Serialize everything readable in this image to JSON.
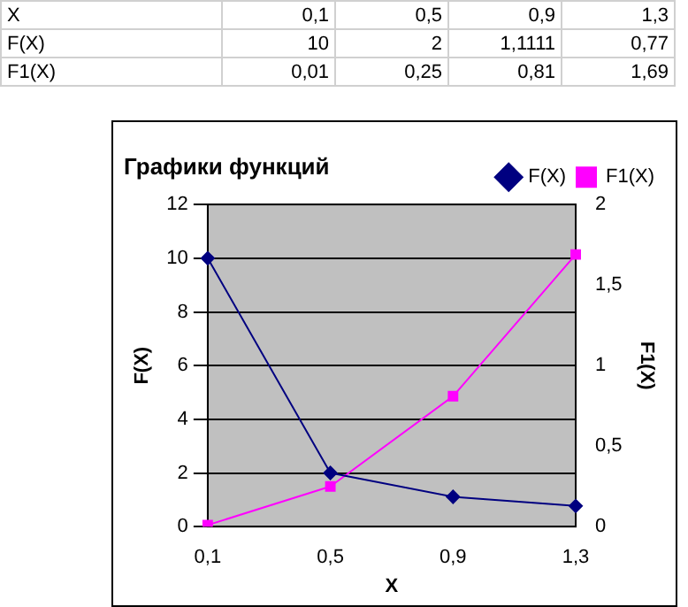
{
  "chart_data": {
    "type": "line",
    "title": "Графики функций",
    "xlabel": "X",
    "ylabel": "F(X)",
    "y2label": "F1(X)",
    "categories": [
      "0,1",
      "0,5",
      "0,9",
      "1,3"
    ],
    "series": [
      {
        "name": "F(X)",
        "color": "#000080",
        "marker": "diamond",
        "values": [
          10,
          2,
          1.1111,
          0.77
        ]
      },
      {
        "name": "F1(X)",
        "color": "#ff00ff",
        "marker": "square",
        "axis": "y2",
        "values": [
          0.01,
          0.25,
          0.81,
          1.69
        ]
      }
    ],
    "annotations": [
      "10",
      "2",
      "1,1111",
      "0,77",
      "0,01",
      "0,25",
      "0,81",
      "1,69"
    ],
    "ylim": [
      0,
      12
    ],
    "yticks": [
      0,
      2,
      4,
      6,
      8,
      10,
      12
    ],
    "y2lim": [
      0,
      2
    ],
    "y2ticks": [
      0,
      {
        "value": 0.5,
        "label": "0,5"
      },
      1,
      {
        "value": 1.5,
        "label": "1,5"
      },
      2
    ],
    "grid": "y",
    "legend": "top right",
    "line_style": "solid"
  }
}
